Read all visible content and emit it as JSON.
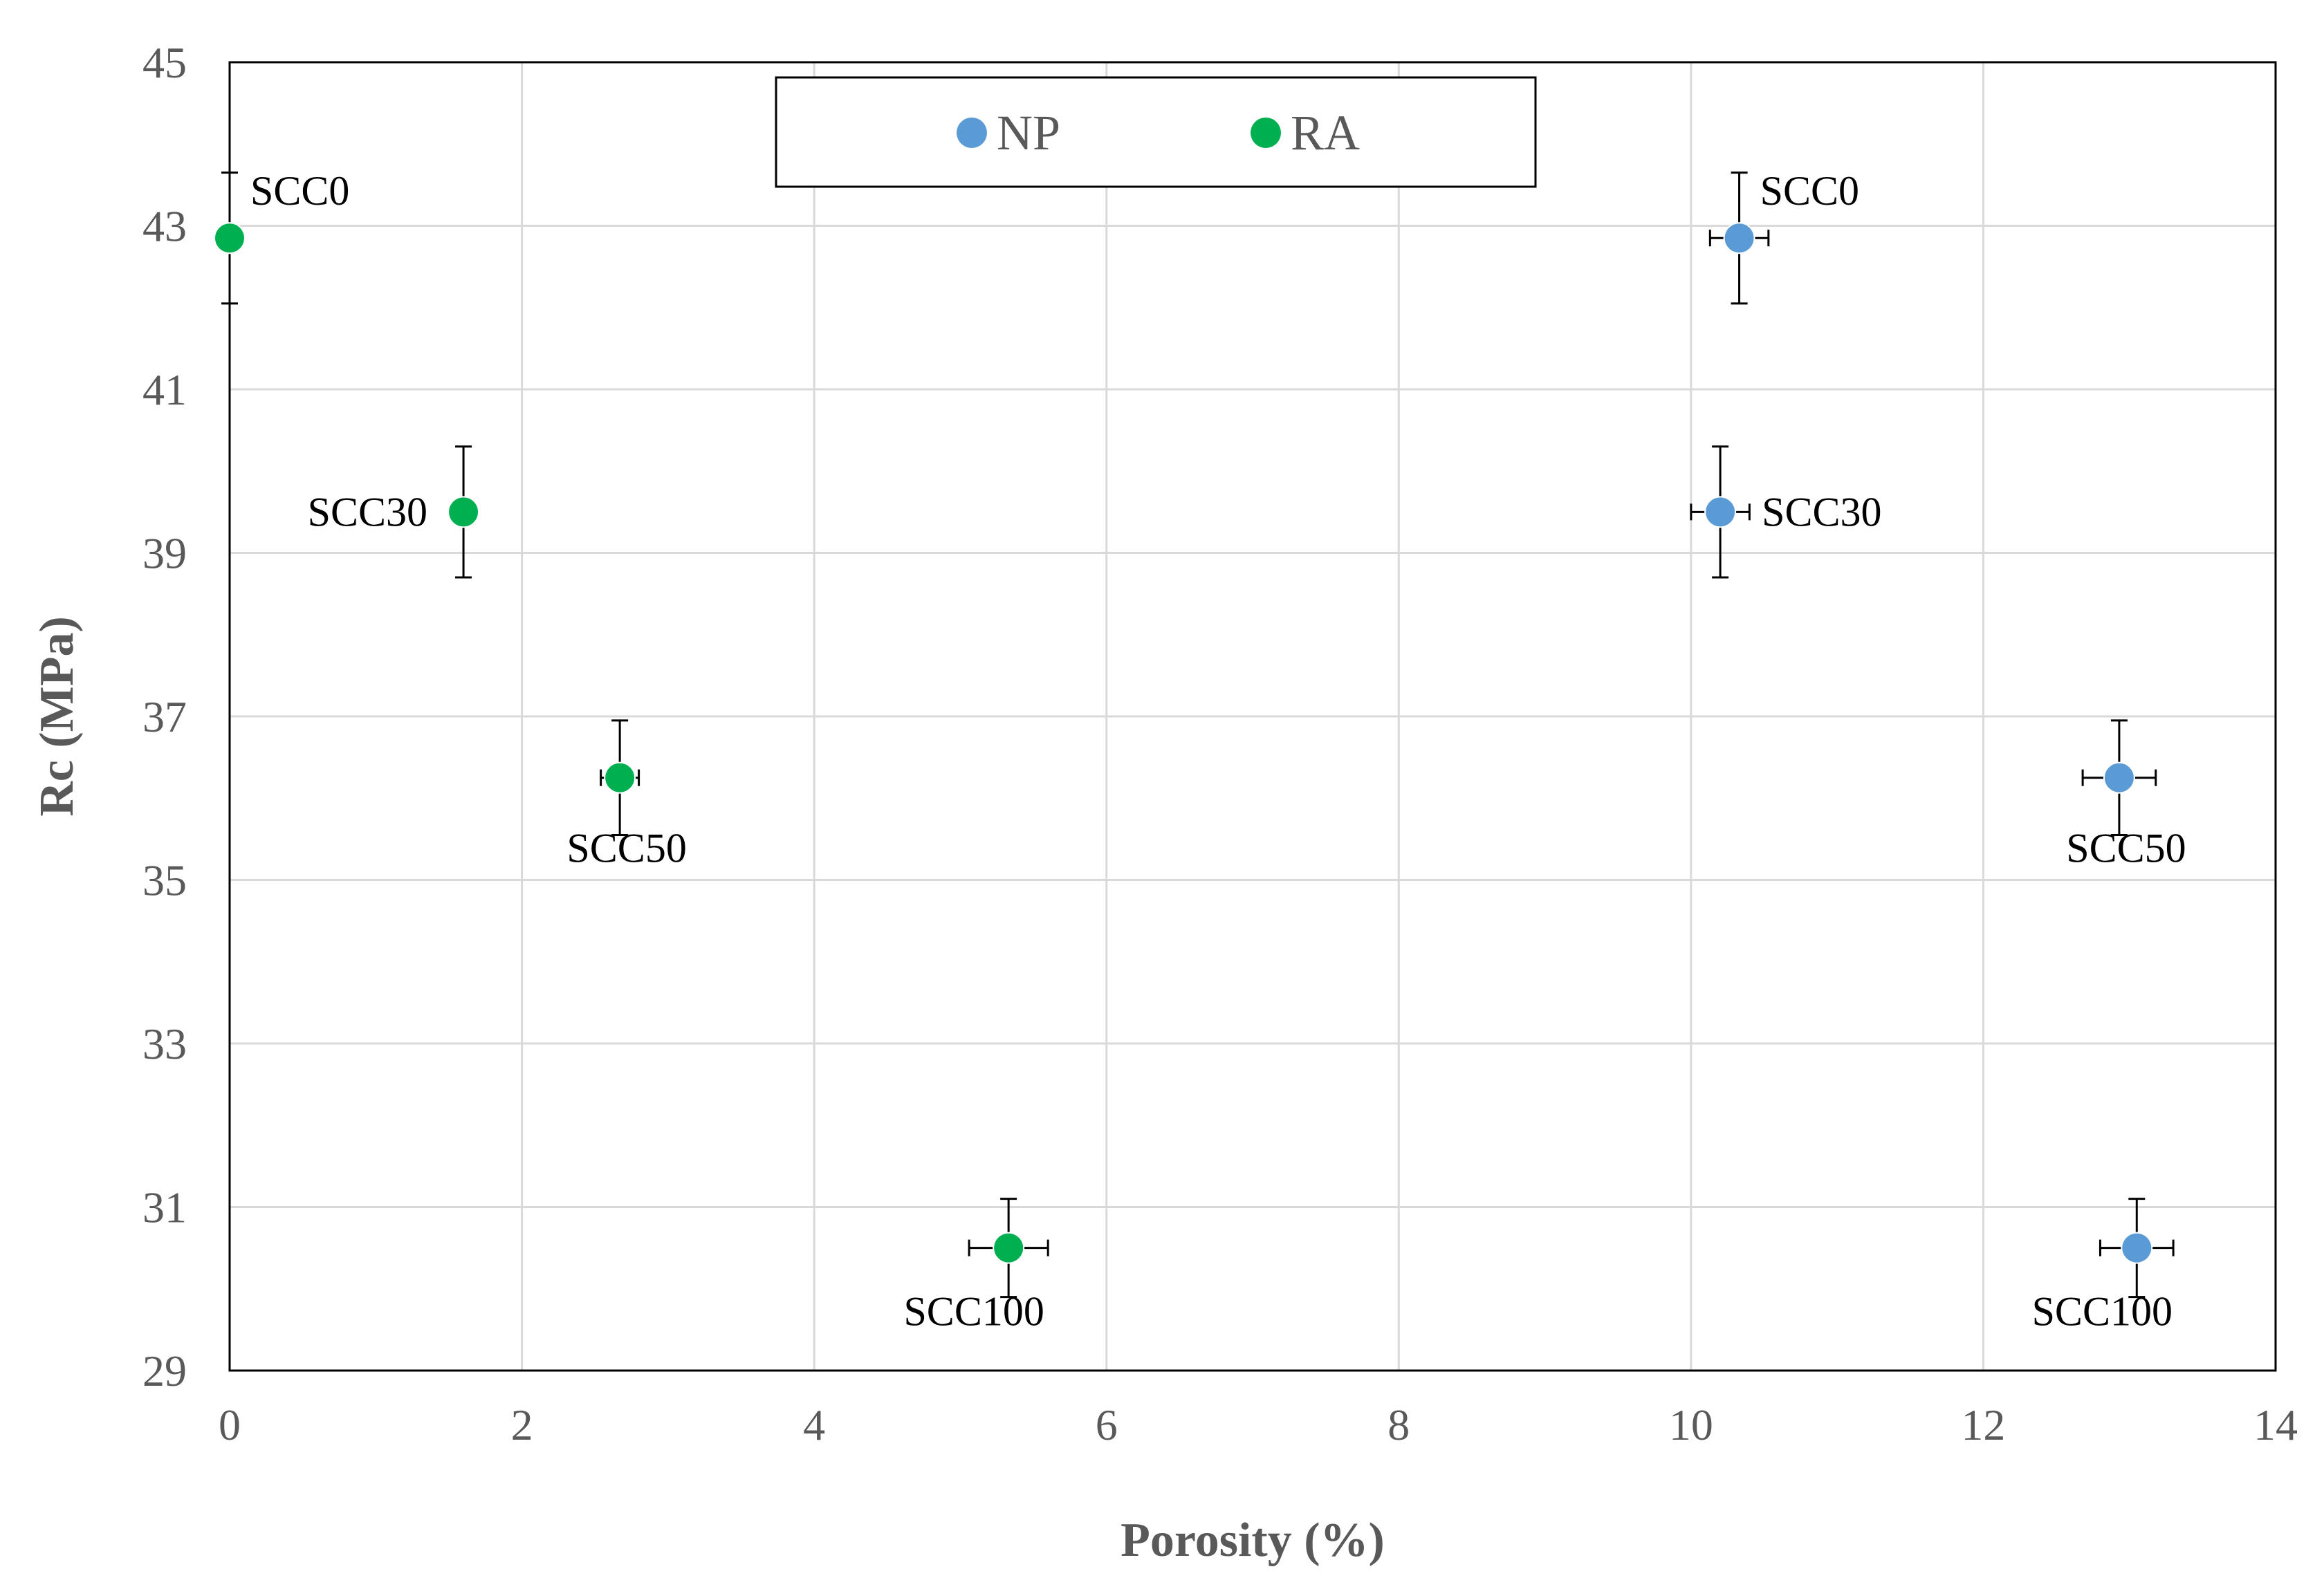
{
  "chart_data": {
    "type": "scatter",
    "xlabel": "Porosity (%)",
    "ylabel": "Rc (MPa)",
    "xlim": [
      0,
      14
    ],
    "ylim": [
      29,
      45
    ],
    "xticks": [
      0,
      2,
      4,
      6,
      8,
      10,
      12,
      14
    ],
    "yticks": [
      29,
      31,
      33,
      35,
      37,
      39,
      41,
      43,
      45
    ],
    "grid": true,
    "legend_position": "top-center",
    "series": [
      {
        "name": "NP",
        "color": "#5B9BD5",
        "points": [
          {
            "label": "SCC0",
            "x": 10.33,
            "y": 42.85,
            "yerr": 0.8,
            "xerr": 0.2,
            "label_pos": "above-right"
          },
          {
            "label": "SCC30",
            "x": 10.2,
            "y": 39.5,
            "yerr": 0.8,
            "xerr": 0.2,
            "label_pos": "right"
          },
          {
            "label": "SCC50",
            "x": 12.93,
            "y": 36.25,
            "yerr": 0.7,
            "xerr": 0.25,
            "label_pos": "below"
          },
          {
            "label": "SCC100",
            "x": 13.05,
            "y": 30.5,
            "yerr": 0.6,
            "xerr": 0.25,
            "label_pos": "below-left"
          }
        ]
      },
      {
        "name": "RA",
        "color": "#00B050",
        "points": [
          {
            "label": "SCC0",
            "x": 0.0,
            "y": 42.85,
            "yerr": 0.8,
            "xerr": 0.0,
            "label_pos": "above-right"
          },
          {
            "label": "SCC30",
            "x": 1.6,
            "y": 39.5,
            "yerr": 0.8,
            "xerr": 0.0,
            "label_pos": "left"
          },
          {
            "label": "SCC50",
            "x": 2.67,
            "y": 36.25,
            "yerr": 0.7,
            "xerr": 0.13,
            "label_pos": "below"
          },
          {
            "label": "SCC100",
            "x": 5.33,
            "y": 30.5,
            "yerr": 0.6,
            "xerr": 0.27,
            "label_pos": "below-left"
          }
        ]
      }
    ]
  }
}
